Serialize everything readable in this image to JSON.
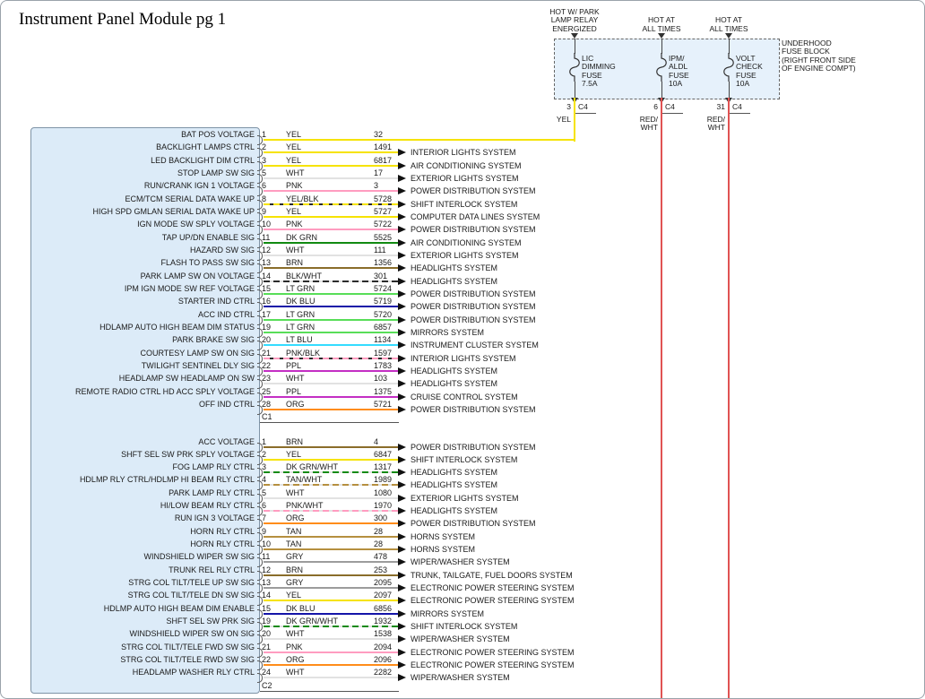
{
  "title": "Instrument Panel Module pg 1",
  "wire_colors": {
    "YEL": "#f6e300",
    "WHT": "#e2e2e2",
    "PNK": "#ff9cc0",
    "DK GRN": "#118a11",
    "BRN": "#8a6d2a",
    "BLK": "#2b2b2b",
    "LT GRN": "#58dd58",
    "DK BLU": "#1414a8",
    "LT BLU": "#35dcff",
    "PPL": "#c42fc4",
    "ORG": "#ff8c1a",
    "TAN": "#b58f3f",
    "GRY": "#9c9c9c",
    "RED": "#e05353"
  },
  "fuse_block": {
    "label_lines": [
      "UNDERHOOD",
      "FUSE BLOCK",
      "(RIGHT FRONT SIDE",
      "OF ENGINE COMPT)"
    ],
    "fuses": [
      {
        "power_label": [
          "HOT W/ PARK",
          "LAMP RELAY",
          "ENERGIZED"
        ],
        "name_lines": [
          "LIC",
          "DIMMING",
          "FUSE",
          "7.5A"
        ],
        "pin": "3",
        "connector": "C4",
        "wire_label": [
          "YEL"
        ],
        "wire_color": "YEL"
      },
      {
        "power_label": [
          "HOT AT",
          "ALL TIMES"
        ],
        "name_lines": [
          "IPM/",
          "ALDL",
          "FUSE",
          "10A"
        ],
        "pin": "6",
        "connector": "C4",
        "wire_label": [
          "RED/",
          "WHT"
        ],
        "wire_color": "RED"
      },
      {
        "power_label": [
          "HOT AT",
          "ALL TIMES"
        ],
        "name_lines": [
          "VOLT",
          "CHECK",
          "FUSE",
          "10A"
        ],
        "pin": "31",
        "connector": "C4",
        "wire_label": [
          "RED/",
          "WHT"
        ],
        "wire_color": "RED"
      }
    ]
  },
  "module": {
    "connectors": [
      {
        "id": "C1",
        "rows": [
          {
            "pin": "1",
            "label": "BAT POS VOLTAGE",
            "color": "YEL",
            "circuit": "32",
            "system": null
          },
          {
            "pin": "2",
            "label": "BACKLIGHT LAMPS CTRL",
            "color": "YEL",
            "circuit": "1491",
            "system": "INTERIOR LIGHTS SYSTEM"
          },
          {
            "pin": "3",
            "label": "LED BACKLIGHT DIM CTRL",
            "color": "YEL",
            "circuit": "6817",
            "system": "AIR CONDITIONING SYSTEM"
          },
          {
            "pin": "5",
            "label": "STOP LAMP SW SIG",
            "color": "WHT",
            "circuit": "17",
            "system": "EXTERIOR LIGHTS SYSTEM"
          },
          {
            "pin": "6",
            "label": "RUN/CRANK IGN 1 VOLTAGE",
            "color": "PNK",
            "circuit": "3",
            "system": "POWER DISTRIBUTION SYSTEM"
          },
          {
            "pin": "8",
            "label": "ECM/TCM SERIAL DATA WAKE UP",
            "color": "YEL/BLK",
            "circuit": "5728",
            "system": "SHIFT INTERLOCK SYSTEM"
          },
          {
            "pin": "9",
            "label": "HIGH SPD GMLAN SERIAL DATA WAKE UP",
            "color": "YEL",
            "circuit": "5727",
            "system": "COMPUTER DATA LINES SYSTEM"
          },
          {
            "pin": "10",
            "label": "IGN MODE SW SPLY VOLTAGE",
            "color": "PNK",
            "circuit": "5722",
            "system": "POWER DISTRIBUTION SYSTEM"
          },
          {
            "pin": "11",
            "label": "TAP UP/DN ENABLE SIG",
            "color": "DK GRN",
            "circuit": "5525",
            "system": "AIR CONDITIONING SYSTEM"
          },
          {
            "pin": "12",
            "label": "HAZARD SW SIG",
            "color": "WHT",
            "circuit": "111",
            "system": "EXTERIOR LIGHTS SYSTEM"
          },
          {
            "pin": "13",
            "label": "FLASH TO PASS SW SIG",
            "color": "BRN",
            "circuit": "1356",
            "system": "HEADLIGHTS SYSTEM"
          },
          {
            "pin": "14",
            "label": "PARK LAMP SW ON VOLTAGE",
            "color": "BLK/WHT",
            "circuit": "301",
            "system": "HEADLIGHTS SYSTEM"
          },
          {
            "pin": "15",
            "label": "IPM IGN MODE SW REF VOLTAGE",
            "color": "LT GRN",
            "circuit": "5724",
            "system": "POWER DISTRIBUTION SYSTEM"
          },
          {
            "pin": "16",
            "label": "STARTER IND CTRL",
            "color": "DK BLU",
            "circuit": "5719",
            "system": "POWER DISTRIBUTION SYSTEM"
          },
          {
            "pin": "17",
            "label": "ACC IND CTRL",
            "color": "LT GRN",
            "circuit": "5720",
            "system": "POWER DISTRIBUTION SYSTEM"
          },
          {
            "pin": "19",
            "label": "HDLAMP AUTO HIGH BEAM DIM STATUS",
            "color": "LT GRN",
            "circuit": "6857",
            "system": "MIRRORS SYSTEM"
          },
          {
            "pin": "20",
            "label": "PARK BRAKE SW SIG",
            "color": "LT BLU",
            "circuit": "1134",
            "system": "INSTRUMENT CLUSTER SYSTEM"
          },
          {
            "pin": "21",
            "label": "COURTESY LAMP SW ON SIG",
            "color": "PNK/BLK",
            "circuit": "1597",
            "system": "INTERIOR LIGHTS SYSTEM"
          },
          {
            "pin": "22",
            "label": "TWILIGHT SENTINEL DLY SIG",
            "color": "PPL",
            "circuit": "1783",
            "system": "HEADLIGHTS SYSTEM"
          },
          {
            "pin": "23",
            "label": "HEADLAMP SW HEADLAMP ON SW",
            "color": "WHT",
            "circuit": "103",
            "system": "HEADLIGHTS SYSTEM"
          },
          {
            "pin": "25",
            "label": "REMOTE RADIO CTRL HD ACC SPLY VOLTAGE",
            "color": "PPL",
            "circuit": "1375",
            "system": "CRUISE CONTROL SYSTEM"
          },
          {
            "pin": "28",
            "label": "OFF IND CTRL",
            "color": "ORG",
            "circuit": "5721",
            "system": "POWER DISTRIBUTION SYSTEM"
          }
        ]
      },
      {
        "id": "C2",
        "rows": [
          {
            "pin": "1",
            "label": "ACC VOLTAGE",
            "color": "BRN",
            "circuit": "4",
            "system": "POWER DISTRIBUTION SYSTEM"
          },
          {
            "pin": "2",
            "label": "SHFT SEL SW PRK SPLY VOLTAGE",
            "color": "YEL",
            "circuit": "6847",
            "system": "SHIFT INTERLOCK SYSTEM"
          },
          {
            "pin": "3",
            "label": "FOG LAMP RLY CTRL",
            "color": "DK GRN/WHT",
            "circuit": "1317",
            "system": "HEADLIGHTS SYSTEM"
          },
          {
            "pin": "4",
            "label": "HDLMP RLY CTRL/HDLMP HI BEAM RLY CTRL",
            "color": "TAN/WHT",
            "circuit": "1989",
            "system": "HEADLIGHTS SYSTEM"
          },
          {
            "pin": "5",
            "label": "PARK LAMP RLY CTRL",
            "color": "WHT",
            "circuit": "1080",
            "system": "EXTERIOR LIGHTS SYSTEM"
          },
          {
            "pin": "6",
            "label": "HI/LOW BEAM RLY CTRL",
            "color": "PNK/WHT",
            "circuit": "1970",
            "system": "HEADLIGHTS SYSTEM"
          },
          {
            "pin": "7",
            "label": "RUN IGN 3 VOLTAGE",
            "color": "ORG",
            "circuit": "300",
            "system": "POWER DISTRIBUTION SYSTEM"
          },
          {
            "pin": "9",
            "label": "HORN RLY CTRL",
            "color": "TAN",
            "circuit": "28",
            "system": "HORNS SYSTEM"
          },
          {
            "pin": "10",
            "label": "HORN RLY CTRL",
            "color": "TAN",
            "circuit": "28",
            "system": "HORNS SYSTEM"
          },
          {
            "pin": "11",
            "label": "WINDSHIELD WIPER SW SIG",
            "color": "GRY",
            "circuit": "478",
            "system": "WIPER/WASHER SYSTEM"
          },
          {
            "pin": "12",
            "label": "TRUNK REL RLY CTRL",
            "color": "BRN",
            "circuit": "253",
            "system": "TRUNK, TAILGATE, FUEL DOORS SYSTEM"
          },
          {
            "pin": "13",
            "label": "STRG COL TILT/TELE UP SW SIG",
            "color": "GRY",
            "circuit": "2095",
            "system": "ELECTRONIC POWER STEERING SYSTEM"
          },
          {
            "pin": "14",
            "label": "STRG COL TILT/TELE DN SW SIG",
            "color": "YEL",
            "circuit": "2097",
            "system": "ELECTRONIC POWER STEERING SYSTEM"
          },
          {
            "pin": "15",
            "label": "HDLMP AUTO HIGH BEAM DIM ENABLE",
            "color": "DK BLU",
            "circuit": "6856",
            "system": "MIRRORS SYSTEM"
          },
          {
            "pin": "19",
            "label": "SHFT SEL SW PRK SIG",
            "color": "DK GRN/WHT",
            "circuit": "1932",
            "system": "SHIFT INTERLOCK SYSTEM"
          },
          {
            "pin": "20",
            "label": "WINDSHIELD WIPER SW ON SIG",
            "color": "WHT",
            "circuit": "1538",
            "system": "WIPER/WASHER SYSTEM"
          },
          {
            "pin": "21",
            "label": "STRG COL TILT/TELE FWD SW SIG",
            "color": "PNK",
            "circuit": "2094",
            "system": "ELECTRONIC POWER STEERING SYSTEM"
          },
          {
            "pin": "22",
            "label": "STRG COL TILT/TELE RWD SW SIG",
            "color": "ORG",
            "circuit": "2096",
            "system": "ELECTRONIC POWER STEERING SYSTEM"
          },
          {
            "pin": "24",
            "label": "HEADLAMP WASHER RLY CTRL",
            "color": "WHT",
            "circuit": "2282",
            "system": "WIPER/WASHER SYSTEM"
          }
        ]
      }
    ]
  }
}
